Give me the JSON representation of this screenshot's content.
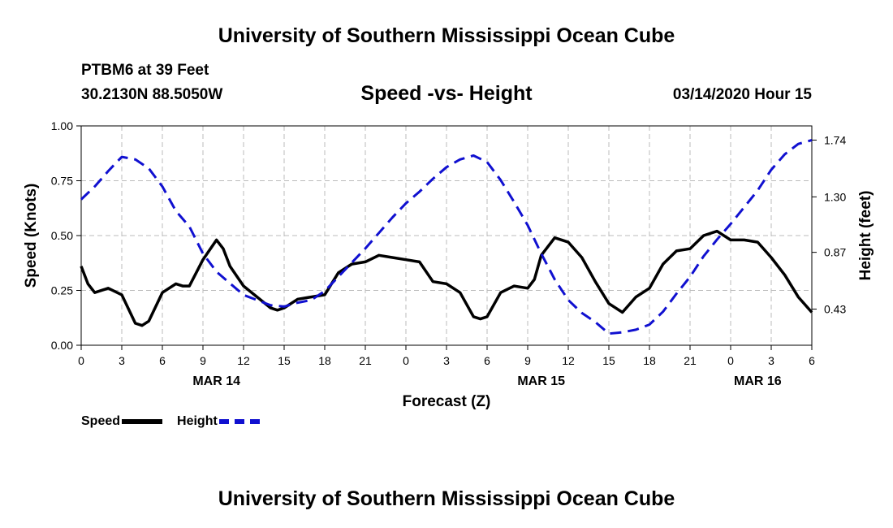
{
  "header": {
    "title": "University of Southern Mississippi Ocean Cube",
    "station": "PTBM6 at 39 Feet",
    "coords": "30.2130N 88.5050W",
    "subtitle": "Speed -vs- Height",
    "datetime": "03/14/2020 Hour 15"
  },
  "footer": {
    "title": "University of Southern Mississippi Ocean Cube"
  },
  "legend": {
    "speed_label": "Speed",
    "height_label": "Height"
  },
  "colors": {
    "speed": "#000000",
    "height": "#1010d0",
    "grid": "#bbbbbb"
  },
  "chart_data": {
    "type": "line",
    "title": "Speed -vs- Height",
    "xlabel": "Forecast (Z)",
    "ylabel": "Speed (Knots)",
    "y2label": "Height (feet)",
    "xlim": [
      0,
      54
    ],
    "ylim": [
      0,
      1.0
    ],
    "y2lim": [
      0.15,
      1.85
    ],
    "x_ticks": [
      0,
      3,
      6,
      9,
      12,
      15,
      18,
      21,
      24,
      27,
      30,
      33,
      36,
      39,
      42,
      45,
      48,
      51,
      54
    ],
    "x_tick_labels": [
      "0",
      "3",
      "6",
      "9",
      "12",
      "15",
      "18",
      "21",
      "0",
      "3",
      "6",
      "9",
      "12",
      "15",
      "18",
      "21",
      "0",
      "3",
      "6"
    ],
    "date_labels": [
      {
        "x": 10,
        "label": "MAR 14"
      },
      {
        "x": 34,
        "label": "MAR 15"
      },
      {
        "x": 50,
        "label": "MAR 16"
      }
    ],
    "y_ticks": [
      0.0,
      0.25,
      0.5,
      0.75,
      1.0
    ],
    "y_tick_labels": [
      "0.00",
      "0.25",
      "0.50",
      "0.75",
      "1.00"
    ],
    "y2_ticks": [
      0.43,
      0.87,
      1.3,
      1.74
    ],
    "y2_tick_labels": [
      "0.43",
      "0.87",
      "1.30",
      "1.74"
    ],
    "series": [
      {
        "name": "Speed",
        "axis": "left",
        "x": [
          0,
          0.5,
          1,
          2,
          3,
          4,
          4.5,
          5,
          6,
          7,
          7.5,
          8,
          9,
          10,
          10.5,
          11,
          12,
          13,
          14,
          14.5,
          15,
          16,
          17,
          18,
          19,
          20,
          21,
          22,
          23,
          24,
          25,
          26,
          27,
          28,
          29,
          29.5,
          30,
          31,
          32,
          33,
          33.5,
          34,
          35,
          36,
          37,
          38,
          39,
          40,
          41,
          42,
          43,
          44,
          45,
          46,
          47,
          48,
          49,
          50,
          51,
          52,
          53,
          54
        ],
        "values": [
          0.36,
          0.28,
          0.24,
          0.26,
          0.23,
          0.1,
          0.09,
          0.11,
          0.24,
          0.28,
          0.27,
          0.27,
          0.39,
          0.48,
          0.44,
          0.36,
          0.27,
          0.22,
          0.17,
          0.16,
          0.17,
          0.21,
          0.22,
          0.23,
          0.33,
          0.37,
          0.38,
          0.41,
          0.4,
          0.39,
          0.38,
          0.29,
          0.28,
          0.24,
          0.13,
          0.12,
          0.13,
          0.24,
          0.27,
          0.26,
          0.3,
          0.41,
          0.49,
          0.47,
          0.4,
          0.29,
          0.19,
          0.15,
          0.22,
          0.26,
          0.37,
          0.43,
          0.44,
          0.5,
          0.52,
          0.48,
          0.48,
          0.47,
          0.4,
          0.32,
          0.22,
          0.15
        ]
      },
      {
        "name": "Height",
        "axis": "right",
        "x": [
          0,
          1,
          2,
          3,
          4,
          5,
          6,
          7,
          8,
          9,
          10,
          11,
          12,
          13,
          14,
          15,
          16,
          17,
          18,
          19,
          20,
          21,
          22,
          23,
          24,
          25,
          26,
          27,
          28,
          29,
          30,
          31,
          32,
          33,
          34,
          35,
          36,
          37,
          38,
          39,
          40,
          41,
          42,
          43,
          44,
          45,
          46,
          47,
          48,
          49,
          50,
          51,
          52,
          53,
          54
        ],
        "values": [
          1.28,
          1.38,
          1.5,
          1.61,
          1.59,
          1.52,
          1.38,
          1.19,
          1.07,
          0.86,
          0.72,
          0.63,
          0.54,
          0.5,
          0.46,
          0.45,
          0.48,
          0.5,
          0.57,
          0.68,
          0.79,
          0.9,
          1.02,
          1.14,
          1.25,
          1.34,
          1.44,
          1.53,
          1.59,
          1.62,
          1.57,
          1.43,
          1.26,
          1.08,
          0.86,
          0.66,
          0.5,
          0.4,
          0.33,
          0.24,
          0.25,
          0.27,
          0.31,
          0.41,
          0.55,
          0.68,
          0.84,
          0.97,
          1.09,
          1.22,
          1.35,
          1.51,
          1.63,
          1.71,
          1.74
        ]
      }
    ]
  }
}
